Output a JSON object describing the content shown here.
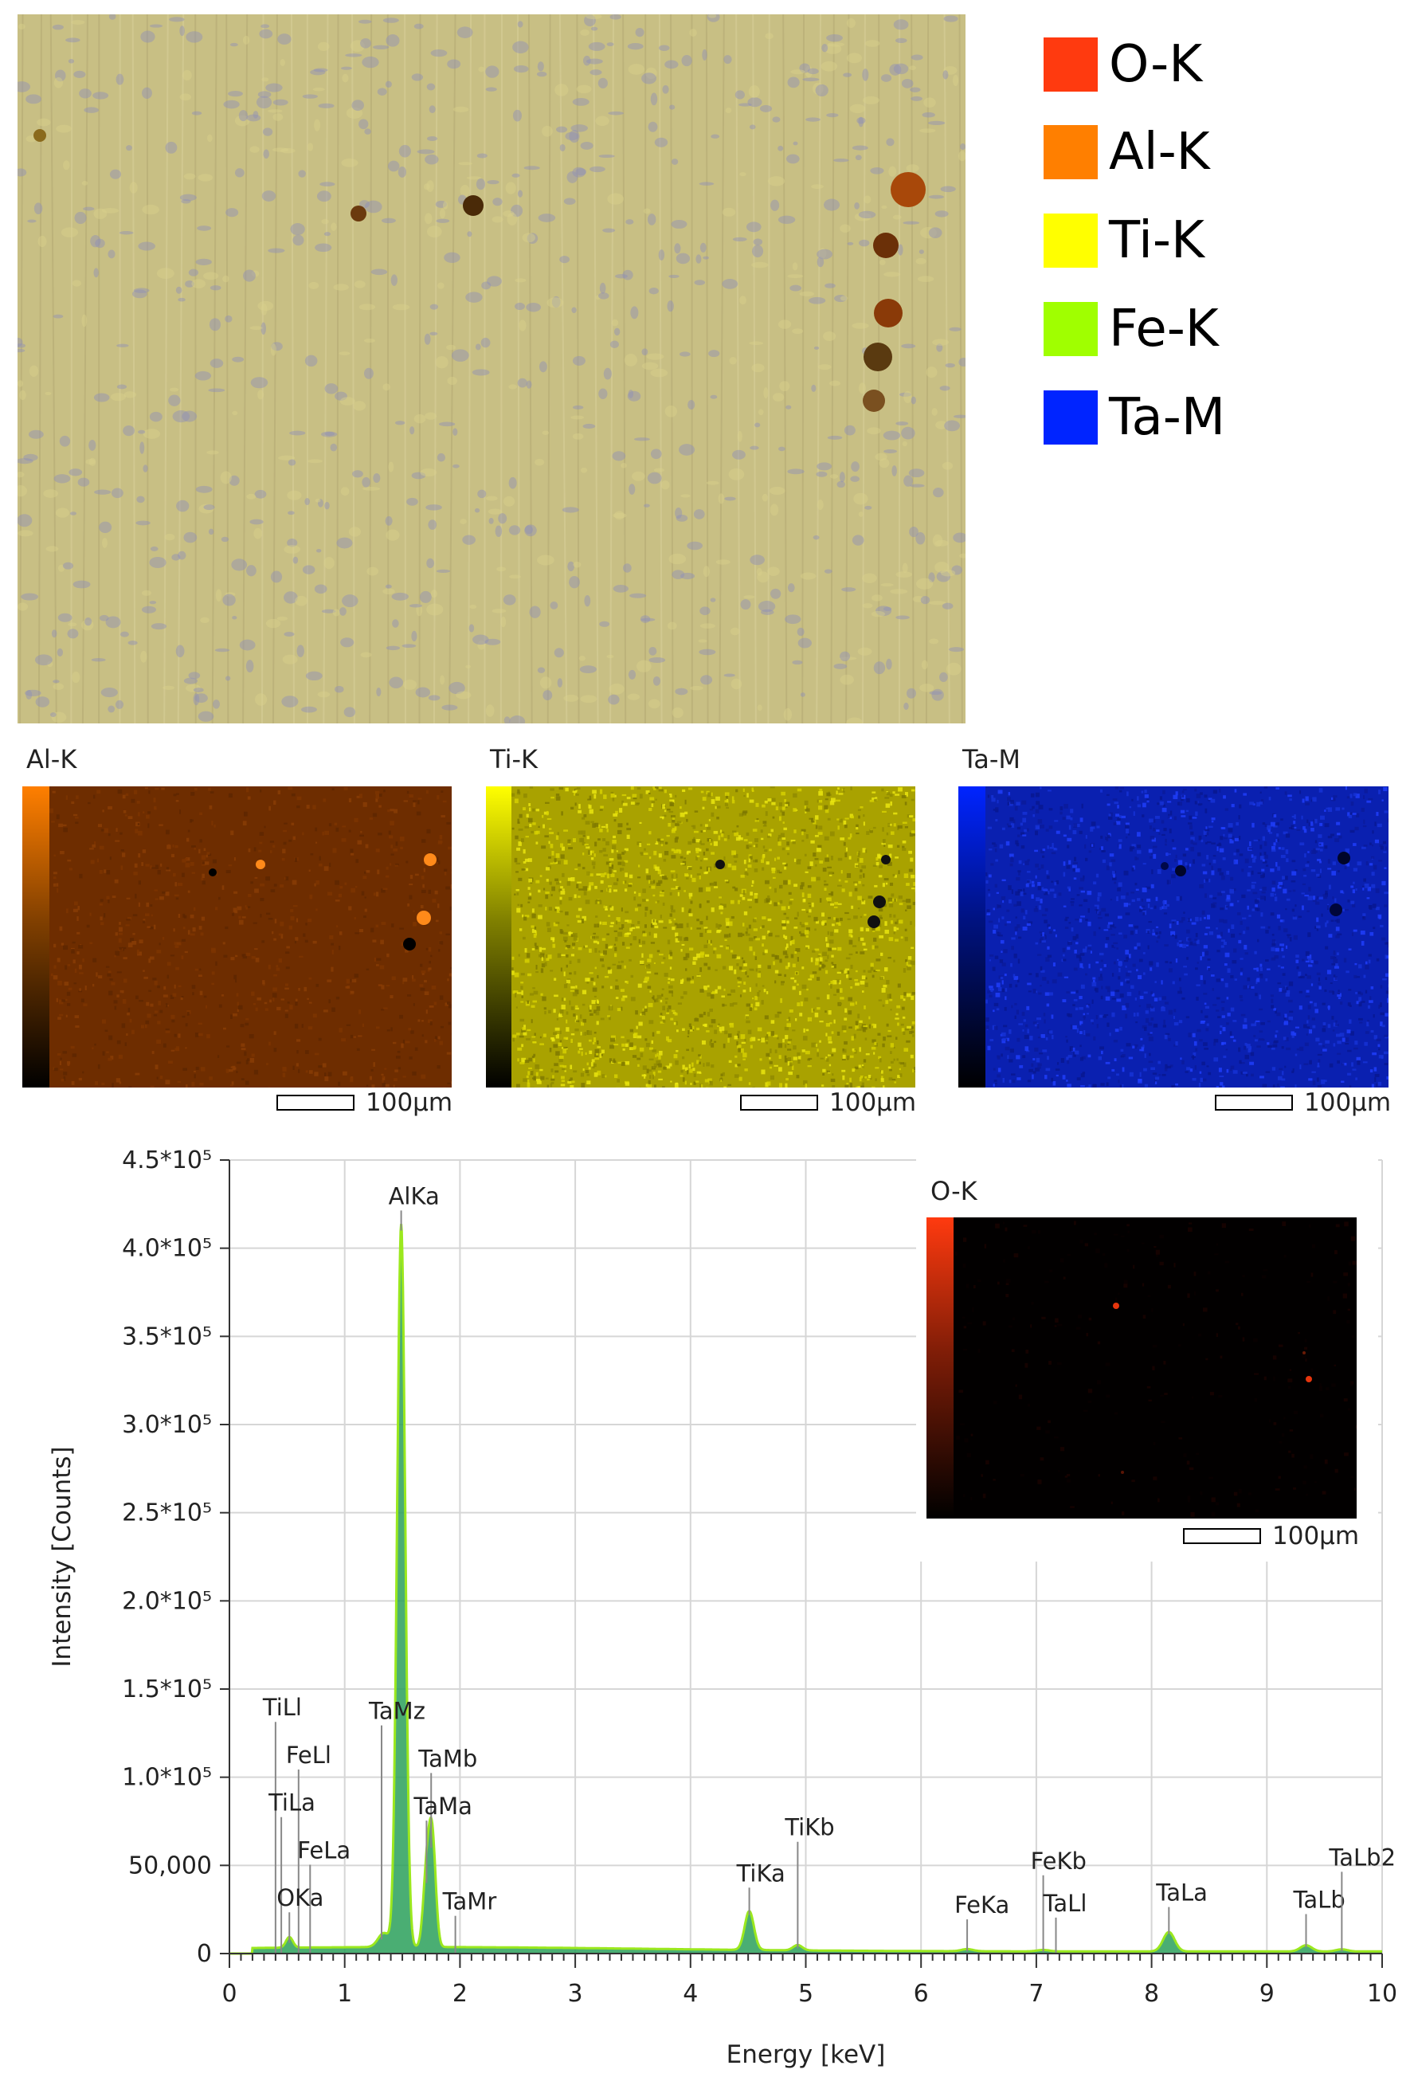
{
  "legend": {
    "items": [
      {
        "label": "O-K",
        "color": "#ff3a0f"
      },
      {
        "label": "Al-K",
        "color": "#ff7f00"
      },
      {
        "label": "Ti-K",
        "color": "#ffff00"
      },
      {
        "label": "Fe-K",
        "color": "#a0ff00"
      },
      {
        "label": "Ta-M",
        "color": "#0024ff"
      }
    ]
  },
  "maps": {
    "al": {
      "title": "Al-K",
      "scale": "100µm",
      "color": "#ff7f00"
    },
    "ti": {
      "title": "Ti-K",
      "scale": "100µm",
      "color": "#ffff00"
    },
    "ta": {
      "title": "Ta-M",
      "scale": "100µm",
      "color": "#0024ff"
    },
    "o": {
      "title": "O-K",
      "scale": "100µm",
      "color": "#ff3a0f"
    }
  },
  "chart_data": {
    "type": "area",
    "xlabel": "Energy [keV]",
    "ylabel": "Intensity [Counts]",
    "xlim": [
      0,
      10
    ],
    "ylim": [
      0,
      450000
    ],
    "x_ticks": [
      0,
      1,
      2,
      3,
      4,
      5,
      6,
      7,
      8,
      9,
      10
    ],
    "y_ticks": [
      {
        "value": 0,
        "label": "0"
      },
      {
        "value": 50000,
        "label": "50,000"
      },
      {
        "value": 100000,
        "label": "1.0*10⁵"
      },
      {
        "value": 150000,
        "label": "1.5*10⁵"
      },
      {
        "value": 200000,
        "label": "2.0*10⁵"
      },
      {
        "value": 250000,
        "label": "2.5*10⁵"
      },
      {
        "value": 300000,
        "label": "3.0*10⁵"
      },
      {
        "value": 350000,
        "label": "3.5*10⁵"
      },
      {
        "value": 400000,
        "label": "4.0*10⁵"
      },
      {
        "value": 450000,
        "label": "4.5*10⁵"
      }
    ],
    "grid": true,
    "series": [
      {
        "peaks": [
          {
            "x": 0.52,
            "y": 6000,
            "w": 0.03
          },
          {
            "x": 1.34,
            "y": 8000,
            "w": 0.05
          },
          {
            "x": 1.49,
            "y": 410000,
            "w": 0.035
          },
          {
            "x": 1.71,
            "y": 40000,
            "w": 0.03
          },
          {
            "x": 1.76,
            "y": 60000,
            "w": 0.03
          },
          {
            "x": 4.51,
            "y": 22000,
            "w": 0.04
          },
          {
            "x": 4.93,
            "y": 3000,
            "w": 0.04
          },
          {
            "x": 6.4,
            "y": 1200,
            "w": 0.05
          },
          {
            "x": 7.06,
            "y": 800,
            "w": 0.05
          },
          {
            "x": 8.15,
            "y": 11000,
            "w": 0.05
          },
          {
            "x": 9.34,
            "y": 3500,
            "w": 0.05
          },
          {
            "x": 9.65,
            "y": 1200,
            "w": 0.05
          }
        ],
        "background": 2500,
        "color": "#9be81e",
        "fill": "#2aa05a"
      }
    ],
    "annotations": [
      {
        "label": "AlKa",
        "x": 1.49,
        "y": 410000,
        "ty": 425000
      },
      {
        "label": "TiLl",
        "x": 0.4,
        "y": 0,
        "ty": 135000
      },
      {
        "label": "FeLl",
        "x": 0.6,
        "y": 0,
        "ty": 108000
      },
      {
        "label": "TiLa",
        "x": 0.45,
        "y": 0,
        "ty": 81000
      },
      {
        "label": "FeLa",
        "x": 0.7,
        "y": 0,
        "ty": 54000
      },
      {
        "label": "OKa",
        "x": 0.52,
        "y": 6000,
        "ty": 27000
      },
      {
        "label": "TaMz",
        "x": 1.32,
        "y": 8000,
        "ty": 133000
      },
      {
        "label": "TaMb",
        "x": 1.75,
        "y": 60000,
        "ty": 106000
      },
      {
        "label": "TaMa",
        "x": 1.71,
        "y": 40000,
        "ty": 79000
      },
      {
        "label": "TaMr",
        "x": 1.96,
        "y": 0,
        "ty": 25000
      },
      {
        "label": "TiKa",
        "x": 4.51,
        "y": 22000,
        "ty": 41000
      },
      {
        "label": "TiKb",
        "x": 4.93,
        "y": 3000,
        "ty": 67000
      },
      {
        "label": "FeKa",
        "x": 6.4,
        "y": 1200,
        "ty": 23000
      },
      {
        "label": "FeKb",
        "x": 7.06,
        "y": 800,
        "ty": 48000
      },
      {
        "label": "TaLl",
        "x": 7.17,
        "y": 0,
        "ty": 24000
      },
      {
        "label": "TaLa",
        "x": 8.15,
        "y": 11000,
        "ty": 30000
      },
      {
        "label": "TaLb",
        "x": 9.34,
        "y": 3500,
        "ty": 26000
      },
      {
        "label": "TaLb2",
        "x": 9.65,
        "y": 1200,
        "ty": 50000
      }
    ]
  }
}
